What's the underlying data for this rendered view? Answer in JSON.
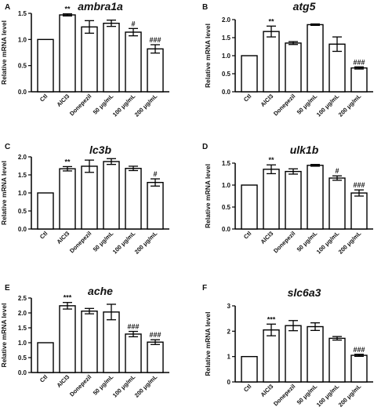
{
  "categories": [
    "Ctl",
    "AlCl3",
    "Donepezil",
    "50 μg/mL",
    "100 μg/mL",
    "200 μg/mL"
  ],
  "chart_data": [
    {
      "type": "bar",
      "panel_label": "A",
      "title": "ambra1a",
      "ylabel": "Relative mRNA level",
      "ylim": [
        0,
        1.5
      ],
      "yticks": [
        "0.0",
        "0.5",
        "1.0",
        "1.5"
      ],
      "categories": [
        "Ctl",
        "AlCl3",
        "Donepezil",
        "50 μg/mL",
        "100 μg/mL",
        "200 μg/mL"
      ],
      "values": [
        1.0,
        1.47,
        1.24,
        1.31,
        1.14,
        0.82
      ],
      "errors": [
        0,
        0.02,
        0.12,
        0.06,
        0.07,
        0.08
      ],
      "annotations": [
        "",
        "**",
        "",
        "",
        "#",
        "###"
      ]
    },
    {
      "type": "bar",
      "panel_label": "B",
      "title": "atg5",
      "ylabel": "Relative mRNA level",
      "ylim": [
        0,
        2.0
      ],
      "yticks": [
        "0.0",
        "0.5",
        "1.0",
        "1.5",
        "2.0"
      ],
      "categories": [
        "Ctl",
        "AlCl3",
        "Donepezil",
        "50 μg/mL",
        "100 μg/mL",
        "200 μg/mL"
      ],
      "values": [
        1.0,
        1.67,
        1.35,
        1.86,
        1.32,
        0.66
      ],
      "errors": [
        0,
        0.15,
        0.04,
        0.02,
        0.2,
        0.03
      ],
      "annotations": [
        "",
        "**",
        "",
        "",
        "",
        "###"
      ]
    },
    {
      "type": "bar",
      "panel_label": "C",
      "title": "lc3b",
      "ylabel": "Relative mRNA level",
      "ylim": [
        0,
        2.0
      ],
      "yticks": [
        "0.0",
        "0.5",
        "1.0",
        "1.5",
        "2.0"
      ],
      "categories": [
        "Ctl",
        "AlCl3",
        "Donepezil",
        "50 μg/mL",
        "100 μg/mL",
        "200 μg/mL"
      ],
      "values": [
        1.0,
        1.67,
        1.74,
        1.87,
        1.68,
        1.29
      ],
      "errors": [
        0,
        0.06,
        0.17,
        0.08,
        0.06,
        0.1
      ],
      "annotations": [
        "",
        "**",
        "",
        "",
        "",
        "#"
      ]
    },
    {
      "type": "bar",
      "panel_label": "D",
      "title": "ulk1b",
      "ylabel": "Relative mRNA level",
      "ylim": [
        0,
        1.5
      ],
      "yticks": [
        "0.0",
        "0.5",
        "1.0",
        "1.5"
      ],
      "categories": [
        "Ctl",
        "AlCl3",
        "Donepezil",
        "50 μg/mL",
        "100 μg/mL",
        "200 μg/mL"
      ],
      "values": [
        1.0,
        1.36,
        1.31,
        1.45,
        1.16,
        0.82
      ],
      "errors": [
        0,
        0.1,
        0.06,
        0.02,
        0.05,
        0.07
      ],
      "annotations": [
        "",
        "**",
        "",
        "",
        "#",
        "###"
      ]
    },
    {
      "type": "bar",
      "panel_label": "E",
      "title": "ache",
      "ylabel": "Relative mRNA level",
      "ylim": [
        0,
        2.5
      ],
      "yticks": [
        "0.0",
        "0.5",
        "1.0",
        "1.5",
        "2.0",
        "2.5"
      ],
      "categories": [
        "Ctl",
        "AlCl3",
        "Donepezil",
        "50 μg/mL",
        "100 μg/mL",
        "200 μg/mL"
      ],
      "values": [
        1.0,
        2.24,
        2.06,
        2.03,
        1.29,
        1.02
      ],
      "errors": [
        0,
        0.11,
        0.09,
        0.26,
        0.09,
        0.08
      ],
      "annotations": [
        "",
        "***",
        "",
        "",
        "###",
        "###"
      ]
    },
    {
      "type": "bar",
      "panel_label": "F",
      "title": "slc6a3",
      "ylabel": "Relative mRNA level",
      "ylim": [
        0,
        3
      ],
      "yticks": [
        "0",
        "1",
        "2",
        "3"
      ],
      "categories": [
        "Ctl",
        "AlCl3",
        "Donepezil",
        "50 μg/mL",
        "100 μg/mL",
        "200 μg/mL"
      ],
      "values": [
        1.0,
        2.05,
        2.22,
        2.18,
        1.72,
        1.05
      ],
      "errors": [
        0,
        0.23,
        0.2,
        0.15,
        0.07,
        0.04
      ],
      "annotations": [
        "",
        "***",
        "",
        "",
        "",
        "###"
      ]
    }
  ]
}
